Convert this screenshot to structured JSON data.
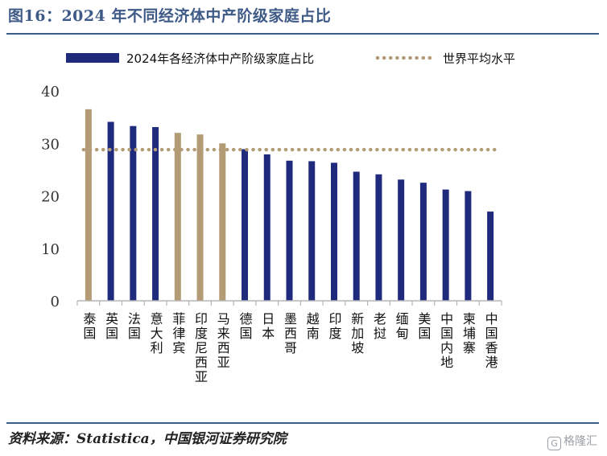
{
  "figure": {
    "title": "图16：2024 年不同经济体中产阶级家庭占比",
    "source": "资料来源：Statistica，中国银河证券研究院",
    "watermark_text": "格隆汇",
    "watermark_icon": "G"
  },
  "colors": {
    "highlight": "#b39b76",
    "primary": "#1f2a7c",
    "reference": "#b39b76",
    "title": "#3e5a87"
  },
  "chart_data": {
    "type": "bar",
    "title": "",
    "xlabel": "",
    "ylabel": "",
    "ylim": [
      0,
      40
    ],
    "yticks": [
      0,
      10,
      20,
      30,
      40
    ],
    "grid": false,
    "legend_position": "top",
    "categories": [
      "泰国",
      "英国",
      "法国",
      "意大利",
      "菲律宾",
      "印度尼西亚",
      "马来西亚",
      "德国",
      "日本",
      "墨西哥",
      "越南",
      "印度",
      "新加坡",
      "老挝",
      "缅甸",
      "美国",
      "中国内地",
      "柬埔寨",
      "中国香港"
    ],
    "series": [
      {
        "name": "2024年各经济体中产阶级家庭占比",
        "values": [
          36.5,
          34.1,
          33.3,
          33.1,
          32.0,
          31.7,
          30.0,
          28.9,
          27.9,
          26.7,
          26.6,
          26.3,
          24.6,
          24.1,
          23.1,
          22.5,
          21.2,
          20.9,
          17.0
        ],
        "highlighted": [
          true,
          false,
          false,
          false,
          true,
          true,
          true,
          false,
          false,
          false,
          false,
          false,
          false,
          false,
          false,
          false,
          false,
          false,
          false
        ]
      }
    ],
    "reference_line": {
      "name": "世界平均水平",
      "value": 28.8
    }
  }
}
